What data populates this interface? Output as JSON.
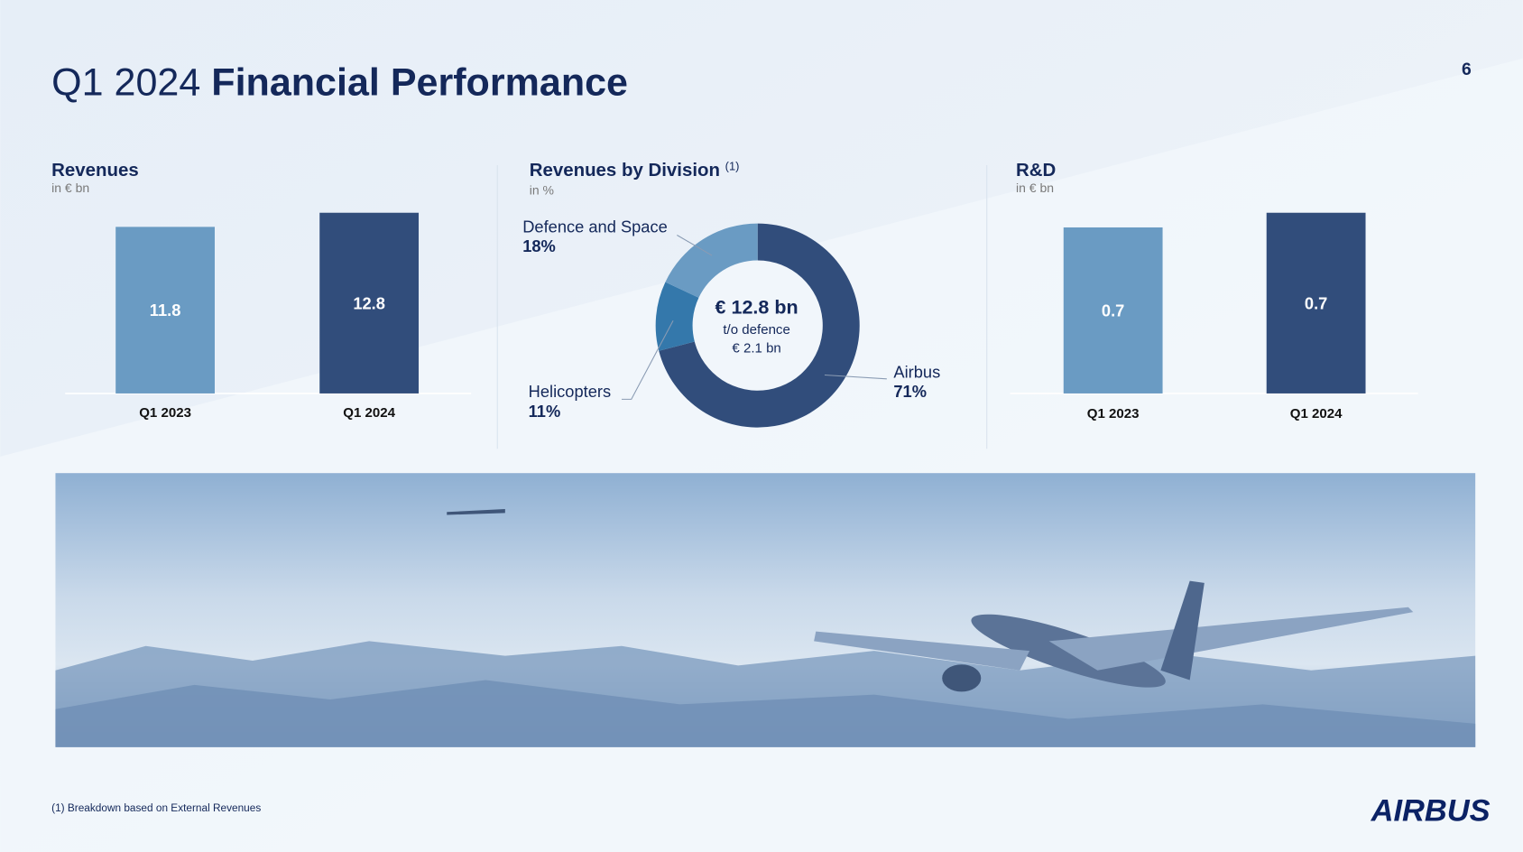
{
  "header": {
    "title_prefix": "Q1 2024",
    "title": "Financial Performance",
    "page": 6
  },
  "chart_data": [
    {
      "type": "bar",
      "title": "Revenues",
      "subtitle": "in € bn",
      "categories": [
        "Q1 2023",
        "Q1 2024"
      ],
      "values": [
        11.8,
        12.8
      ],
      "colors": [
        "#6a9bc3",
        "#314d7b"
      ]
    },
    {
      "type": "donut",
      "title": "Revenues by Division",
      "title_note": "(1)",
      "subtitle": "in %",
      "categories": [
        "Airbus",
        "Helicopters",
        "Defence and Space"
      ],
      "values": [
        71,
        11,
        18
      ],
      "value_labels": [
        "71%",
        "11%",
        "18%"
      ],
      "colors": [
        "#314d7b",
        "#3478ab",
        "#6a9bc3"
      ],
      "center_text": [
        "€ 12.8 bn",
        "t/o defence",
        "€ 2.1 bn"
      ]
    },
    {
      "type": "bar",
      "title": "R&D",
      "subtitle": "in € bn",
      "categories": [
        "Q1 2023",
        "Q1 2024"
      ],
      "values": [
        0.68,
        0.74
      ],
      "value_labels": [
        "0.7",
        "0.7"
      ],
      "colors": [
        "#6a9bc3",
        "#314d7b"
      ]
    }
  ],
  "footnote": "(1) Breakdown based on External Revenues",
  "logo": "AIRBUS"
}
